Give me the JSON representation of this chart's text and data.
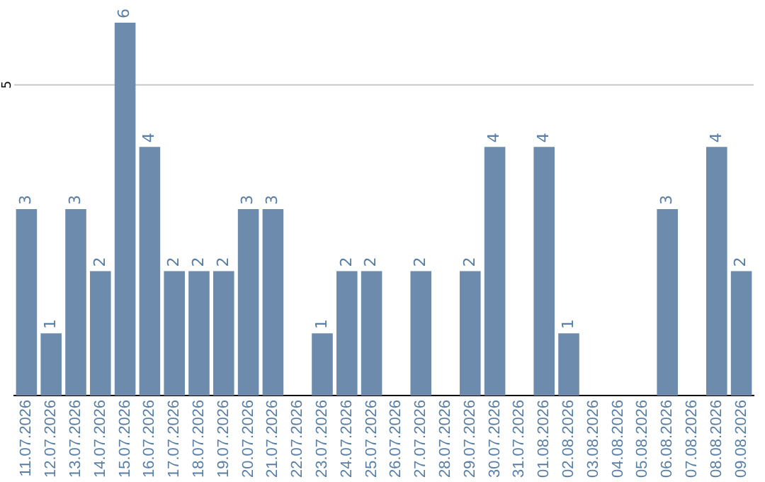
{
  "chart_data": {
    "type": "bar",
    "categories": [
      "11.07.2026",
      "12.07.2026",
      "13.07.2026",
      "14.07.2026",
      "15.07.2026",
      "16.07.2026",
      "17.07.2026",
      "18.07.2026",
      "19.07.2026",
      "20.07.2026",
      "21.07.2026",
      "22.07.2026",
      "23.07.2026",
      "24.07.2026",
      "25.07.2026",
      "26.07.2026",
      "27.07.2026",
      "28.07.2026",
      "29.07.2026",
      "30.07.2026",
      "31.07.2026",
      "01.08.2026",
      "02.08.2026",
      "03.08.2026",
      "04.08.2026",
      "05.08.2026",
      "06.08.2026",
      "07.08.2026",
      "08.08.2026",
      "09.08.2026"
    ],
    "values": [
      3,
      1,
      3,
      2,
      6,
      4,
      2,
      2,
      2,
      3,
      3,
      null,
      1,
      2,
      2,
      null,
      2,
      null,
      2,
      4,
      null,
      4,
      1,
      null,
      null,
      null,
      3,
      null,
      4,
      2
    ],
    "color": "#6d8cad",
    "ref_lines": [
      {
        "axis": "y",
        "value": 5,
        "label": "5",
        "color": "#c8c8c8"
      }
    ],
    "data_labels": true
  }
}
